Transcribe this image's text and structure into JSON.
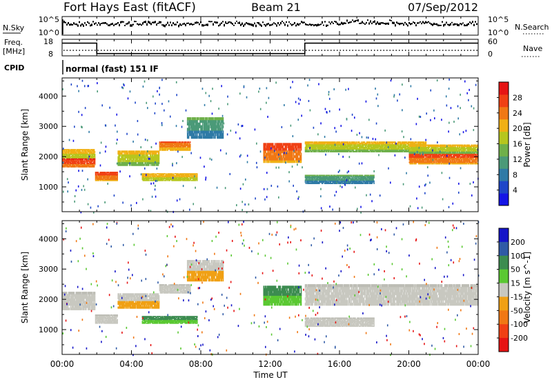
{
  "header": {
    "station": "Fort Hays East (fitACF)",
    "beam": "Beam 21",
    "date": "07/Sep/2012"
  },
  "panels": {
    "nsky": {
      "label": "N.Sky",
      "ticks_left": [
        "10^5",
        "10^0"
      ],
      "right_label": "N.Search",
      "ticks_right": [
        "10^5",
        "10^0"
      ]
    },
    "freq": {
      "label_line1": "Freq.",
      "label_line2": "[MHz]",
      "ticks_left": [
        "18",
        "8"
      ],
      "right_label": "Nave",
      "ticks_right": [
        "60",
        "0"
      ],
      "freq_segments": [
        {
          "start_h": 0.0,
          "end_h": 2.0,
          "mhz": 16.5
        },
        {
          "start_h": 2.0,
          "end_h": 14.0,
          "mhz": 10.2
        },
        {
          "start_h": 14.0,
          "end_h": 24.0,
          "mhz": 16.5
        }
      ]
    },
    "cpid": {
      "label": "CPID",
      "mode_text": "normal (fast) 151 IF"
    }
  },
  "chart_data": [
    {
      "type": "heatmap",
      "name": "Power",
      "xlabel": "",
      "ylabel": "Slant Range [km]",
      "xlim": [
        0,
        24
      ],
      "ylim": [
        180,
        4600
      ],
      "y_ticks": [
        1000,
        2000,
        3000,
        4000
      ],
      "colorbar": {
        "label": "Power [dB]",
        "ticks": [
          4,
          8,
          12,
          16,
          20,
          24,
          28
        ],
        "range": [
          0,
          32
        ],
        "colors": [
          "#1414e6",
          "#1e46c8",
          "#2f7aa6",
          "#4b9a78",
          "#6fb04a",
          "#b6c61e",
          "#f0b014",
          "#f07814",
          "#f04014",
          "#e61414"
        ]
      },
      "bands": [
        {
          "t0": 0.0,
          "t1": 1.9,
          "r0": 1650,
          "r1": 1950,
          "value": 28
        },
        {
          "t0": 0.0,
          "t1": 1.9,
          "r0": 1950,
          "r1": 2250,
          "value": 20
        },
        {
          "t0": 1.9,
          "t1": 3.2,
          "r0": 1200,
          "r1": 1500,
          "value": 26
        },
        {
          "t0": 3.2,
          "t1": 5.6,
          "r0": 1700,
          "r1": 2200,
          "value": 18
        },
        {
          "t0": 5.6,
          "t1": 7.4,
          "r0": 2200,
          "r1": 2500,
          "value": 24
        },
        {
          "t0": 7.2,
          "t1": 9.3,
          "r0": 2600,
          "r1": 3300,
          "value": 10
        },
        {
          "t0": 4.6,
          "t1": 7.8,
          "r0": 1200,
          "r1": 1450,
          "value": 20
        },
        {
          "t0": 11.6,
          "t1": 13.8,
          "r0": 1800,
          "r1": 2450,
          "value": 26
        },
        {
          "t0": 14.0,
          "t1": 18.0,
          "r0": 1100,
          "r1": 1400,
          "value": 10
        },
        {
          "t0": 14.0,
          "t1": 21.0,
          "r0": 2150,
          "r1": 2500,
          "value": 18
        },
        {
          "t0": 20.0,
          "t1": 24.0,
          "r0": 1750,
          "r1": 2100,
          "value": 26
        },
        {
          "t0": 20.0,
          "t1": 24.0,
          "r0": 2100,
          "r1": 2400,
          "value": 18
        }
      ]
    },
    {
      "type": "heatmap",
      "name": "Velocity",
      "xlabel": "Time UT",
      "ylabel": "Slant Range [km]",
      "xlim": [
        0,
        24
      ],
      "ylim": [
        180,
        4600
      ],
      "y_ticks": [
        1000,
        2000,
        3000,
        4000
      ],
      "x_ticks": [
        "00:00",
        "04:00",
        "08:00",
        "12:00",
        "16:00",
        "20:00",
        "00:00"
      ],
      "colorbar": {
        "label": "Velocity [m s^-1]",
        "ticks": [
          "200",
          "100",
          "50",
          "15",
          "-15",
          "-50",
          "-100",
          "-200"
        ],
        "colors": [
          "#1414c8",
          "#2f5aa6",
          "#3c8c50",
          "#5ac832",
          "#c8c8c0",
          "#f0a014",
          "#f07814",
          "#f04014",
          "#e61414"
        ]
      },
      "bands": [
        {
          "t0": 0.0,
          "t1": 1.9,
          "r0": 1650,
          "r1": 2250,
          "value": "ground"
        },
        {
          "t0": 1.9,
          "t1": 3.2,
          "r0": 1200,
          "r1": 1500,
          "value": "ground"
        },
        {
          "t0": 3.2,
          "t1": 5.6,
          "r0": 1700,
          "r1": 2200,
          "value": -50
        },
        {
          "t0": 5.6,
          "t1": 7.4,
          "r0": 2200,
          "r1": 2500,
          "value": "ground"
        },
        {
          "t0": 7.2,
          "t1": 9.3,
          "r0": 2600,
          "r1": 3300,
          "value": -50
        },
        {
          "t0": 4.6,
          "t1": 7.8,
          "r0": 1200,
          "r1": 1450,
          "value": 50
        },
        {
          "t0": 11.6,
          "t1": 13.8,
          "r0": 1800,
          "r1": 2450,
          "value": 50
        },
        {
          "t0": 14.0,
          "t1": 18.0,
          "r0": 1100,
          "r1": 1400,
          "value": "ground"
        },
        {
          "t0": 14.0,
          "t1": 24.0,
          "r0": 1800,
          "r1": 2500,
          "value": "ground"
        }
      ]
    }
  ]
}
